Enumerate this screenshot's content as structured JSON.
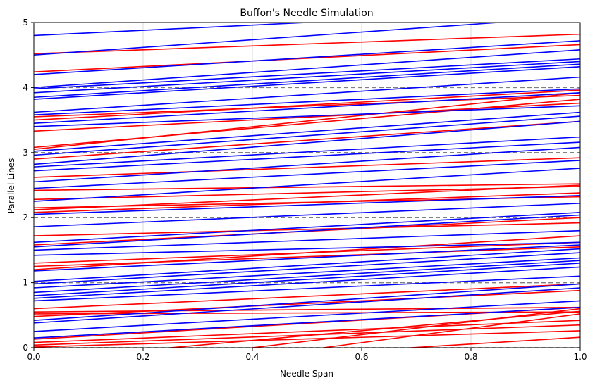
{
  "chart_data": {
    "type": "line",
    "title": "Buffon's Needle Simulation",
    "xlabel": "Needle Span",
    "ylabel": "Parallel Lines",
    "xlim": [
      0,
      1
    ],
    "ylim": [
      0,
      5
    ],
    "xticks": [
      "0.0",
      "0.2",
      "0.4",
      "0.6",
      "0.8",
      "1.0"
    ],
    "yticks": [
      "0",
      "1",
      "2",
      "3",
      "4",
      "5"
    ],
    "grid": true,
    "parallel_lines": [
      0,
      1,
      2,
      3,
      4
    ],
    "colors": {
      "crossing": "#ff0000",
      "non_crossing": "#0000ff",
      "parallel_line": "#808080",
      "grid": "#b0b0b0"
    },
    "series": [
      {
        "status": "crossing",
        "needles": [
          [
            0.0,
            4.52,
            1.0,
            4.82
          ],
          [
            0.0,
            4.24,
            1.0,
            4.66
          ],
          [
            0.0,
            3.55,
            1.0,
            3.88
          ],
          [
            0.0,
            3.5,
            1.0,
            3.96
          ],
          [
            0.0,
            3.33,
            1.0,
            3.76
          ],
          [
            0.0,
            3.08,
            1.0,
            3.82
          ],
          [
            0.0,
            3.05,
            1.0,
            3.92
          ],
          [
            0.0,
            2.9,
            1.0,
            3.48
          ],
          [
            0.0,
            2.62,
            1.0,
            2.92
          ],
          [
            0.0,
            2.42,
            1.0,
            2.52
          ],
          [
            0.0,
            2.28,
            1.0,
            2.48
          ],
          [
            0.0,
            2.15,
            1.0,
            2.32
          ],
          [
            0.0,
            2.12,
            1.0,
            2.5
          ],
          [
            0.0,
            2.08,
            1.0,
            2.38
          ],
          [
            0.0,
            1.72,
            1.0,
            1.92
          ],
          [
            0.0,
            1.58,
            1.0,
            2.0
          ],
          [
            0.0,
            1.3,
            1.0,
            1.62
          ],
          [
            0.0,
            1.25,
            1.0,
            1.55
          ],
          [
            0.0,
            1.2,
            1.0,
            1.72
          ],
          [
            0.0,
            0.6,
            1.0,
            0.98
          ],
          [
            0.0,
            0.55,
            1.0,
            0.62
          ],
          [
            0.0,
            0.52,
            1.0,
            0.55
          ],
          [
            0.0,
            0.48,
            1.0,
            0.88
          ],
          [
            0.0,
            0.13,
            1.0,
            0.62
          ],
          [
            0.0,
            0.08,
            1.0,
            0.42
          ],
          [
            0.0,
            0.04,
            1.0,
            0.35
          ],
          [
            0.0,
            0.01,
            1.0,
            0.26
          ],
          [
            0.25,
            0.0,
            1.0,
            0.56
          ],
          [
            0.4,
            0.0,
            1.0,
            0.6
          ],
          [
            0.53,
            0.0,
            1.0,
            0.52
          ],
          [
            0.69,
            0.0,
            1.0,
            0.16
          ]
        ]
      },
      {
        "status": "non_crossing",
        "needles": [
          [
            0.0,
            4.8,
            0.5,
            5.0
          ],
          [
            0.0,
            4.5,
            0.85,
            5.0
          ],
          [
            0.0,
            4.2,
            1.0,
            4.72
          ],
          [
            0.0,
            4.0,
            1.0,
            4.58
          ],
          [
            0.0,
            3.98,
            1.0,
            4.44
          ],
          [
            0.0,
            3.92,
            1.0,
            4.4
          ],
          [
            0.0,
            3.85,
            1.0,
            4.36
          ],
          [
            0.0,
            3.82,
            1.0,
            4.32
          ],
          [
            0.0,
            3.62,
            1.0,
            4.16
          ],
          [
            0.0,
            3.58,
            1.0,
            3.98
          ],
          [
            0.0,
            3.45,
            1.0,
            3.92
          ],
          [
            0.0,
            3.4,
            1.0,
            3.72
          ],
          [
            0.0,
            3.02,
            1.0,
            3.62
          ],
          [
            0.0,
            2.96,
            1.0,
            3.56
          ],
          [
            0.0,
            2.82,
            1.0,
            3.48
          ],
          [
            0.0,
            2.78,
            1.0,
            3.24
          ],
          [
            0.0,
            2.72,
            1.0,
            3.16
          ],
          [
            0.0,
            2.55,
            1.0,
            3.08
          ],
          [
            0.0,
            2.45,
            1.0,
            2.88
          ],
          [
            0.0,
            2.25,
            1.0,
            2.76
          ],
          [
            0.0,
            2.05,
            1.0,
            2.34
          ],
          [
            0.0,
            1.86,
            1.0,
            2.22
          ],
          [
            0.0,
            1.62,
            1.0,
            2.08
          ],
          [
            0.0,
            1.55,
            1.0,
            2.04
          ],
          [
            0.0,
            1.5,
            1.0,
            1.8
          ],
          [
            0.0,
            1.42,
            1.0,
            1.62
          ],
          [
            0.0,
            1.18,
            1.0,
            1.58
          ],
          [
            0.0,
            1.02,
            1.0,
            1.52
          ],
          [
            0.0,
            0.98,
            1.0,
            1.46
          ],
          [
            0.0,
            0.92,
            1.0,
            1.38
          ],
          [
            0.0,
            0.85,
            1.0,
            1.34
          ],
          [
            0.0,
            0.8,
            1.0,
            1.3
          ],
          [
            0.0,
            0.76,
            1.0,
            1.24
          ],
          [
            0.0,
            0.72,
            1.0,
            1.1
          ],
          [
            0.0,
            0.42,
            1.0,
            0.98
          ],
          [
            0.0,
            0.38,
            1.0,
            0.92
          ],
          [
            0.0,
            0.25,
            1.0,
            0.72
          ],
          [
            0.0,
            0.15,
            1.0,
            0.62
          ]
        ]
      }
    ]
  }
}
